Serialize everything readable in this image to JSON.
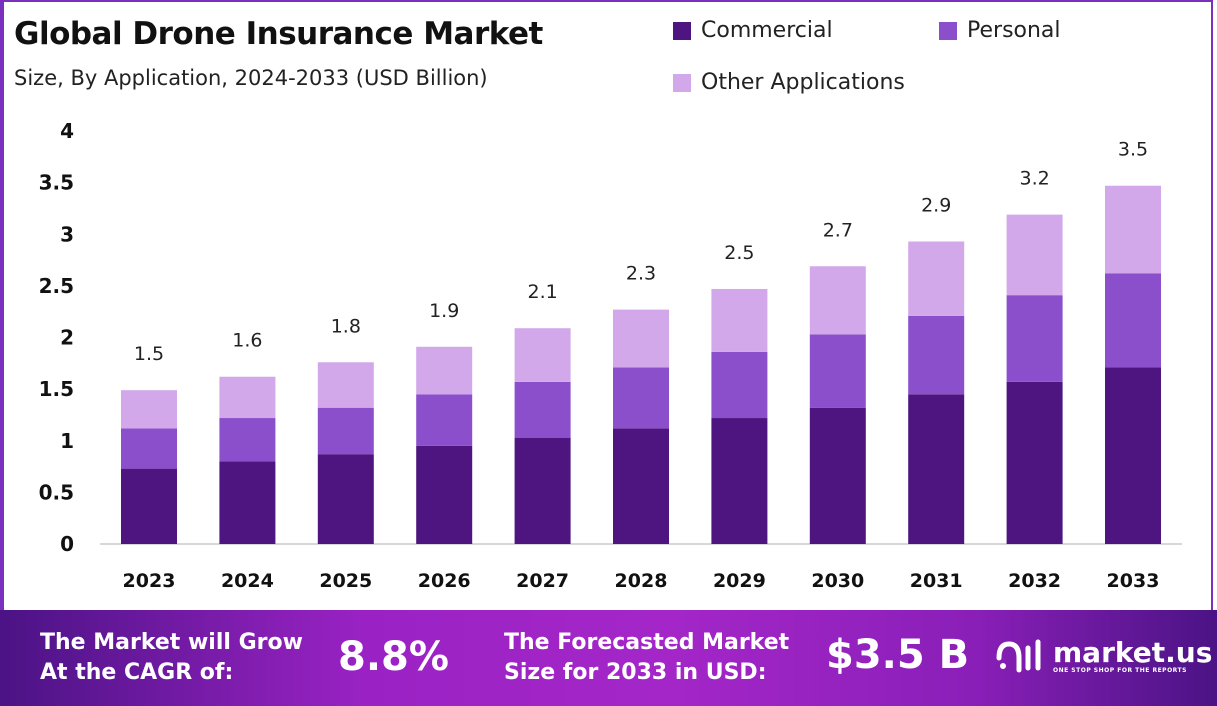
{
  "chart_data": {
    "type": "bar",
    "stacked": true,
    "title": "Global Drone Insurance Market",
    "subtitle": "Size, By Application, 2024-2033 (USD Billion)",
    "categories": [
      "2023",
      "2024",
      "2025",
      "2026",
      "2027",
      "2028",
      "2029",
      "2030",
      "2031",
      "2032",
      "2033"
    ],
    "series": [
      {
        "name": "Commercial",
        "color": "#4e1580",
        "values": [
          0.73,
          0.8,
          0.87,
          0.95,
          1.03,
          1.12,
          1.22,
          1.32,
          1.45,
          1.57,
          1.71
        ]
      },
      {
        "name": "Personal",
        "color": "#8c4fcc",
        "values": [
          0.39,
          0.42,
          0.45,
          0.5,
          0.54,
          0.59,
          0.64,
          0.71,
          0.76,
          0.84,
          0.91
        ]
      },
      {
        "name": "Other Applications",
        "color": "#d2a8ea",
        "values": [
          0.37,
          0.4,
          0.44,
          0.46,
          0.52,
          0.56,
          0.61,
          0.66,
          0.72,
          0.78,
          0.85
        ]
      }
    ],
    "totals_labels": [
      "1.5",
      "1.6",
      "1.8",
      "1.9",
      "2.1",
      "2.3",
      "2.5",
      "2.7",
      "2.9",
      "3.2",
      "3.5"
    ],
    "yticks": [
      "0",
      "0.5",
      "1",
      "1.5",
      "2",
      "2.5",
      "3",
      "3.5",
      "4"
    ],
    "ylim": [
      0,
      4
    ],
    "grid": false,
    "legend_position": "top-right"
  },
  "banner": {
    "cagr_label_line1": "The Market will Grow",
    "cagr_label_line2": "At the CAGR of:",
    "cagr_value": "8.8%",
    "forecast_label_line1": "The Forecasted Market",
    "forecast_label_line2": "Size for 2033 in USD:",
    "forecast_value": "$3.5 B",
    "logo_name": "market.us",
    "logo_tagline": "ONE STOP SHOP FOR THE REPORTS"
  }
}
